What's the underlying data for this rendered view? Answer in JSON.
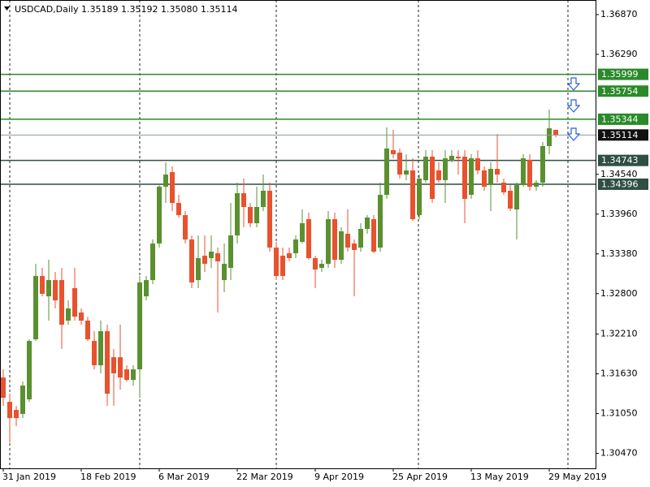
{
  "chart_data": {
    "type": "candlestick",
    "title": "USDCAD,Daily  1.35189 1.35192 1.35080 1.35114",
    "categories": [
      "31 Jan 2019",
      null,
      null,
      null,
      null,
      null,
      null,
      null,
      null,
      null,
      null,
      null,
      "18 Feb 2019",
      null,
      null,
      null,
      null,
      null,
      null,
      null,
      null,
      null,
      null,
      null,
      "6 Mar 2019",
      null,
      null,
      null,
      null,
      null,
      null,
      null,
      null,
      null,
      null,
      null,
      "22 Mar 2019",
      null,
      null,
      null,
      null,
      null,
      null,
      null,
      null,
      null,
      null,
      null,
      "9 Apr 2019",
      null,
      null,
      null,
      null,
      null,
      null,
      null,
      null,
      null,
      null,
      null,
      "25 Apr 2019",
      null,
      null,
      null,
      null,
      null,
      null,
      null,
      null,
      null,
      null,
      null,
      "13 May 2019",
      null,
      null,
      null,
      null,
      null,
      null,
      null,
      null,
      null,
      null,
      null,
      "29 May 2019",
      null
    ],
    "open": [
      1.31577,
      1.31222,
      1.31104,
      1.31045,
      1.31258,
      1.32134,
      1.33057,
      1.32761,
      1.32998,
      1.32998,
      1.32406,
      1.3288,
      1.32525,
      1.32406,
      1.3211,
      1.31755,
      1.32252,
      1.31873,
      1.31873,
      1.31696,
      1.31542,
      1.31696,
      1.32761,
      1.32998,
      1.33531,
      1.3436,
      1.34573,
      1.34123,
      1.33945,
      1.3359,
      1.32998,
      1.33353,
      1.33318,
      1.33389,
      1.32998,
      1.33176,
      1.33649,
      1.34265,
      1.34064,
      1.33827,
      1.34064,
      1.34301,
      1.33472,
      1.33353,
      1.33389,
      1.33389,
      1.33555,
      1.33886,
      1.33318,
      1.33176,
      1.33235,
      1.33886,
      1.33294,
      1.33673,
      1.33531,
      1.33472,
      1.33744,
      1.33886,
      1.33472,
      1.34241,
      1.34893,
      1.34857,
      1.34537,
      1.34597,
      1.33945,
      1.34455,
      1.34798,
      1.34597,
      1.34455,
      1.34739,
      1.34798,
      1.34798,
      1.34241,
      1.34774,
      1.34597,
      1.34383,
      1.3462,
      1.34419,
      1.34301,
      1.34028,
      1.34383,
      1.34751,
      1.3436,
      1.34419,
      1.34952,
      1.35189
    ],
    "high": [
      1.31696,
      1.31341,
      1.31163,
      1.31518,
      1.32134,
      1.33235,
      1.33176,
      1.33294,
      1.33117,
      1.33176,
      1.32702,
      1.33176,
      1.32584,
      1.32465,
      1.32252,
      1.32406,
      1.32347,
      1.31992,
      1.32347,
      1.31755,
      1.31755,
      1.33057,
      1.33057,
      1.3359,
      1.34383,
      1.34715,
      1.34656,
      1.34241,
      1.34005,
      1.33649,
      1.33649,
      1.33649,
      1.33649,
      1.33472,
      1.33531,
      1.34123,
      1.34419,
      1.34478,
      1.34123,
      1.3436,
      1.34537,
      1.34419,
      1.33555,
      1.33472,
      1.33472,
      1.33649,
      1.34028,
      1.33981,
      1.33353,
      1.33294,
      1.34005,
      1.33981,
      1.33768,
      1.34028,
      1.3359,
      1.33827,
      1.33945,
      1.33945,
      1.34419,
      1.35224,
      1.35189,
      1.34916,
      1.34833,
      1.34774,
      1.34537,
      1.34893,
      1.34893,
      1.34715,
      1.34893,
      1.34893,
      1.34893,
      1.34893,
      1.34833,
      1.34893,
      1.34656,
      1.34715,
      1.35129,
      1.34478,
      1.34383,
      1.34419,
      1.34833,
      1.34833,
      1.34455,
      1.35011,
      1.35485,
      1.35192
    ],
    "low": [
      1.31163,
      1.3063,
      1.30867,
      1.30985,
      1.31222,
      1.3211,
      1.32761,
      1.32406,
      1.32584,
      1.31992,
      1.32347,
      1.32406,
      1.32347,
      1.3211,
      1.31696,
      1.31637,
      1.31163,
      1.31163,
      1.314,
      1.31518,
      1.31459,
      1.31281,
      1.32702,
      1.32939,
      1.33472,
      1.34123,
      1.34005,
      1.3391,
      1.33531,
      1.3288,
      1.3288,
      1.33117,
      1.33176,
      1.32525,
      1.32821,
      1.32998,
      1.33531,
      1.33768,
      1.33768,
      1.33768,
      1.34005,
      1.33413,
      1.32998,
      1.32998,
      1.33271,
      1.33318,
      1.33531,
      1.33294,
      1.3288,
      1.33117,
      1.33176,
      1.33176,
      1.33235,
      1.33413,
      1.32761,
      1.33413,
      1.33673,
      1.33389,
      1.33413,
      1.34182,
      1.34774,
      1.34478,
      1.34455,
      1.33863,
      1.33886,
      1.34419,
      1.34123,
      1.34419,
      1.34123,
      1.34715,
      1.34537,
      1.33827,
      1.34182,
      1.34537,
      1.34301,
      1.34005,
      1.34419,
      1.34241,
      1.34005,
      1.3359,
      1.3436,
      1.34301,
      1.34301,
      1.3436,
      1.34833,
      1.3508
    ],
    "close": [
      1.31281,
      1.30985,
      1.30985,
      1.31459,
      1.3211,
      1.33057,
      1.32797,
      1.32998,
      1.32702,
      1.32347,
      1.32584,
      1.32465,
      1.32406,
      1.32134,
      1.31755,
      1.32252,
      1.31341,
      1.31637,
      1.31577,
      1.31542,
      1.31696,
      1.32963,
      1.32998,
      1.33531,
      1.3436,
      1.34537,
      1.34123,
      1.33945,
      1.3359,
      1.32963,
      1.33318,
      1.33235,
      1.33413,
      1.33271,
      1.33235,
      1.33649,
      1.34265,
      1.34064,
      1.33827,
      1.34064,
      1.34301,
      1.33472,
      1.33057,
      1.33057,
      1.33318,
      1.3359,
      1.33827,
      1.33318,
      1.33152,
      1.33235,
      1.33886,
      1.33294,
      1.33709,
      1.33472,
      1.33436,
      1.33744,
      1.3391,
      1.33413,
      1.34241,
      1.34916,
      1.34833,
      1.34537,
      1.34597,
      1.33886,
      1.34478,
      1.34798,
      1.34182,
      1.34455,
      1.34774,
      1.3481,
      1.34774,
      1.34182,
      1.34774,
      1.34597,
      1.3436,
      1.3462,
      1.34537,
      1.34277,
      1.3404,
      1.34383,
      1.34774,
      1.3436,
      1.34419,
      1.34952,
      1.35212,
      1.35114
    ],
    "up_color": "#5a9030",
    "down_color": "#e8522e",
    "ylim": [
      1.30252,
      1.37083
    ],
    "yticks": [
      {
        "value": 1.3687,
        "label": "1.36870"
      },
      {
        "value": 1.3629,
        "label": "1.36290"
      },
      {
        "value": 1.3454,
        "label": "1.34540"
      },
      {
        "value": 1.3396,
        "label": "1.33960"
      },
      {
        "value": 1.3338,
        "label": "1.33380"
      },
      {
        "value": 1.328,
        "label": "1.32800"
      },
      {
        "value": 1.3221,
        "label": "1.32210"
      },
      {
        "value": 1.3163,
        "label": "1.31630"
      },
      {
        "value": 1.3105,
        "label": "1.31050"
      },
      {
        "value": 1.3047,
        "label": "1.30470"
      }
    ],
    "levels": [
      {
        "value": 1.35999,
        "color": "#2a8a2a"
      },
      {
        "value": 1.35754,
        "color": "#2a8a2a"
      },
      {
        "value": 1.35344,
        "color": "#2a8a2a"
      },
      {
        "value": 1.34743,
        "color": "#2f4f44"
      },
      {
        "value": 1.34396,
        "color": "#2f4f44"
      }
    ],
    "bid_color": "#8a9a9a"
  }
}
